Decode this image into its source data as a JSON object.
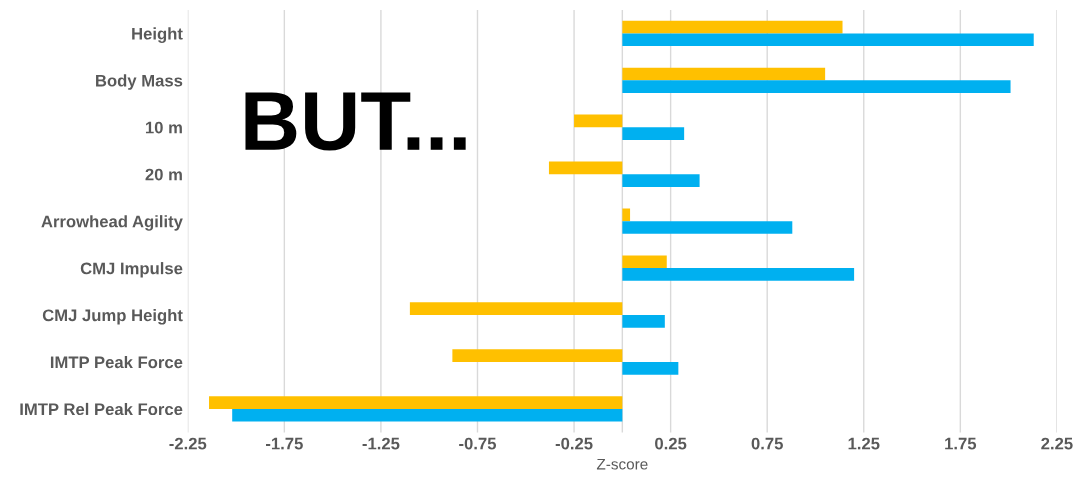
{
  "chart_data": {
    "type": "bar",
    "orientation": "horizontal",
    "xlabel": "Z-score",
    "categories": [
      "Height",
      "Body Mass",
      "10 m",
      "20 m",
      "Arrowhead Agility",
      "CMJ Impulse",
      "CMJ Jump Height",
      "IMTP Peak Force",
      "IMTP Rel Peak Force"
    ],
    "series": [
      {
        "color": "#ffc000",
        "values": [
          1.14,
          1.05,
          -0.25,
          -0.38,
          0.04,
          0.23,
          -1.1,
          -0.88,
          -2.14
        ]
      },
      {
        "color": "#00b0f0",
        "values": [
          2.13,
          2.01,
          0.32,
          0.4,
          0.88,
          1.2,
          0.22,
          0.29,
          -2.02
        ]
      }
    ],
    "xlim": [
      -2.25,
      2.25
    ],
    "xticks": [
      -2.25,
      -1.75,
      -1.25,
      -0.75,
      -0.25,
      0.25,
      0.75,
      1.25,
      1.75,
      2.25
    ],
    "grid": "x",
    "legend": false,
    "annotations": [
      "BUT..."
    ]
  }
}
